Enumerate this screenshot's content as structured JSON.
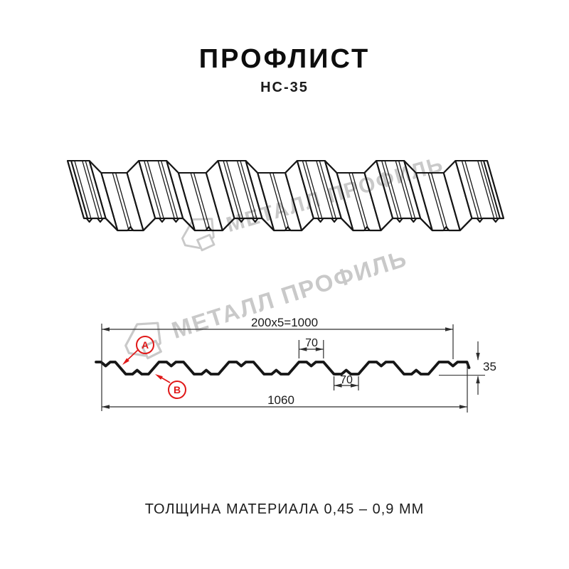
{
  "title": "ПРОФЛИСТ",
  "subtitle": "НС-35",
  "footer": "ТОЛЩИНА МАТЕРИАЛА 0,45 – 0,9 ММ",
  "watermark": {
    "text": "МЕТАЛЛ ПРОФИЛЬ"
  },
  "colors": {
    "line": "#161616",
    "dim": "#2e2e2e",
    "accent_red": "#e01818",
    "watermark": "#c9c9c9",
    "background": "#ffffff"
  },
  "profile": {
    "name": "НС-35",
    "pitch_mm": 200,
    "crest_top_mm": 70,
    "valley_bottom_mm": 70,
    "height_mm": 35,
    "total_width_mm": 1060,
    "working_width_mm": 1000
  },
  "section": {
    "dim_working_width": "200x5=1000",
    "dim_crest_width": "70",
    "dim_valley_width": "70",
    "dim_height": "35",
    "dim_total_width": "1060",
    "marker_a": "А",
    "marker_b": "В"
  }
}
